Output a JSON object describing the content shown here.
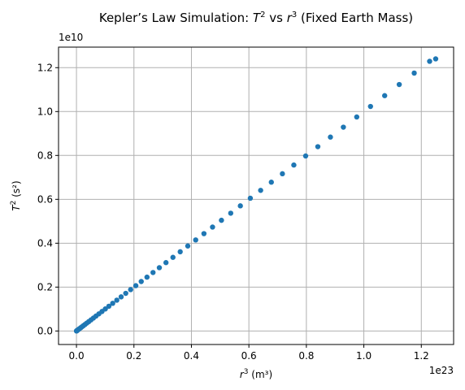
{
  "chart_data": {
    "type": "scatter",
    "title": "Kepler’s Law Simulation: T² vs r³ (Fixed Earth Mass)",
    "title_parts": {
      "before_t": "Kepler’s Law Simulation: ",
      "t": "T",
      "mid": " vs ",
      "r": "r",
      "after": " (Fixed Earth Mass)",
      "exp_t": "2",
      "exp_r": "3"
    },
    "xlabel": {
      "var": "r",
      "exp": "3",
      "unit": " (m³)"
    },
    "ylabel": {
      "var": "T",
      "exp": "2",
      "unit": " (s²)"
    },
    "x_offset_text": "1e23",
    "y_offset_text": "1e10",
    "x_scale": 1e+23,
    "y_scale": 10000000000.0,
    "xlim": [
      -0.0624,
      1.3124
    ],
    "ylim": [
      -0.0616,
      1.2936
    ],
    "xticks": [
      0.0,
      0.2,
      0.4,
      0.6,
      0.8,
      1.0,
      1.2
    ],
    "xtick_labels": [
      "0.0",
      "0.2",
      "0.4",
      "0.6",
      "0.8",
      "1.0",
      "1.2"
    ],
    "yticks": [
      0.0,
      0.2,
      0.4,
      0.6,
      0.8,
      1.0,
      1.2
    ],
    "ytick_labels": [
      "0.0",
      "0.2",
      "0.4",
      "0.6",
      "0.8",
      "1.0",
      "1.2"
    ],
    "grid": true,
    "color": "#1f77b4",
    "series": [
      {
        "x": [
          0.0001,
          0.0005,
          0.0012,
          0.0023,
          0.0038,
          0.0058,
          0.0083,
          0.0114,
          0.015,
          0.0193,
          0.0241,
          0.0297,
          0.0359,
          0.0428,
          0.0505,
          0.0589,
          0.068,
          0.078,
          0.0888,
          0.1004,
          0.1128,
          0.1261,
          0.1404,
          0.1555,
          0.1715,
          0.1885,
          0.2065,
          0.2254,
          0.2454,
          0.2664,
          0.2884,
          0.3115,
          0.3357,
          0.361,
          0.3874,
          0.4149,
          0.4436,
          0.4735,
          0.5045,
          0.5368,
          0.5703,
          0.605,
          0.6409,
          0.6781,
          0.7166,
          0.7564,
          0.7975,
          0.8399,
          0.8837,
          0.9288,
          0.9753,
          1.0232,
          1.0725,
          1.1232,
          1.1753,
          1.2289,
          1.25
        ],
        "y": [
          0.0001,
          0.0005,
          0.0012,
          0.0023,
          0.0038,
          0.0058,
          0.0083,
          0.0114,
          0.015,
          0.0193,
          0.0241,
          0.0297,
          0.0359,
          0.0428,
          0.0505,
          0.0589,
          0.068,
          0.078,
          0.0888,
          0.1004,
          0.1128,
          0.1261,
          0.1404,
          0.1555,
          0.1715,
          0.1885,
          0.2065,
          0.2254,
          0.2454,
          0.2664,
          0.2884,
          0.3115,
          0.3357,
          0.361,
          0.3874,
          0.4149,
          0.4436,
          0.4735,
          0.5045,
          0.5368,
          0.5703,
          0.605,
          0.6409,
          0.6781,
          0.7166,
          0.7564,
          0.7975,
          0.8399,
          0.8837,
          0.9288,
          0.9753,
          1.0232,
          1.0725,
          1.1232,
          1.1753,
          1.2289,
          1.24
        ]
      }
    ]
  }
}
